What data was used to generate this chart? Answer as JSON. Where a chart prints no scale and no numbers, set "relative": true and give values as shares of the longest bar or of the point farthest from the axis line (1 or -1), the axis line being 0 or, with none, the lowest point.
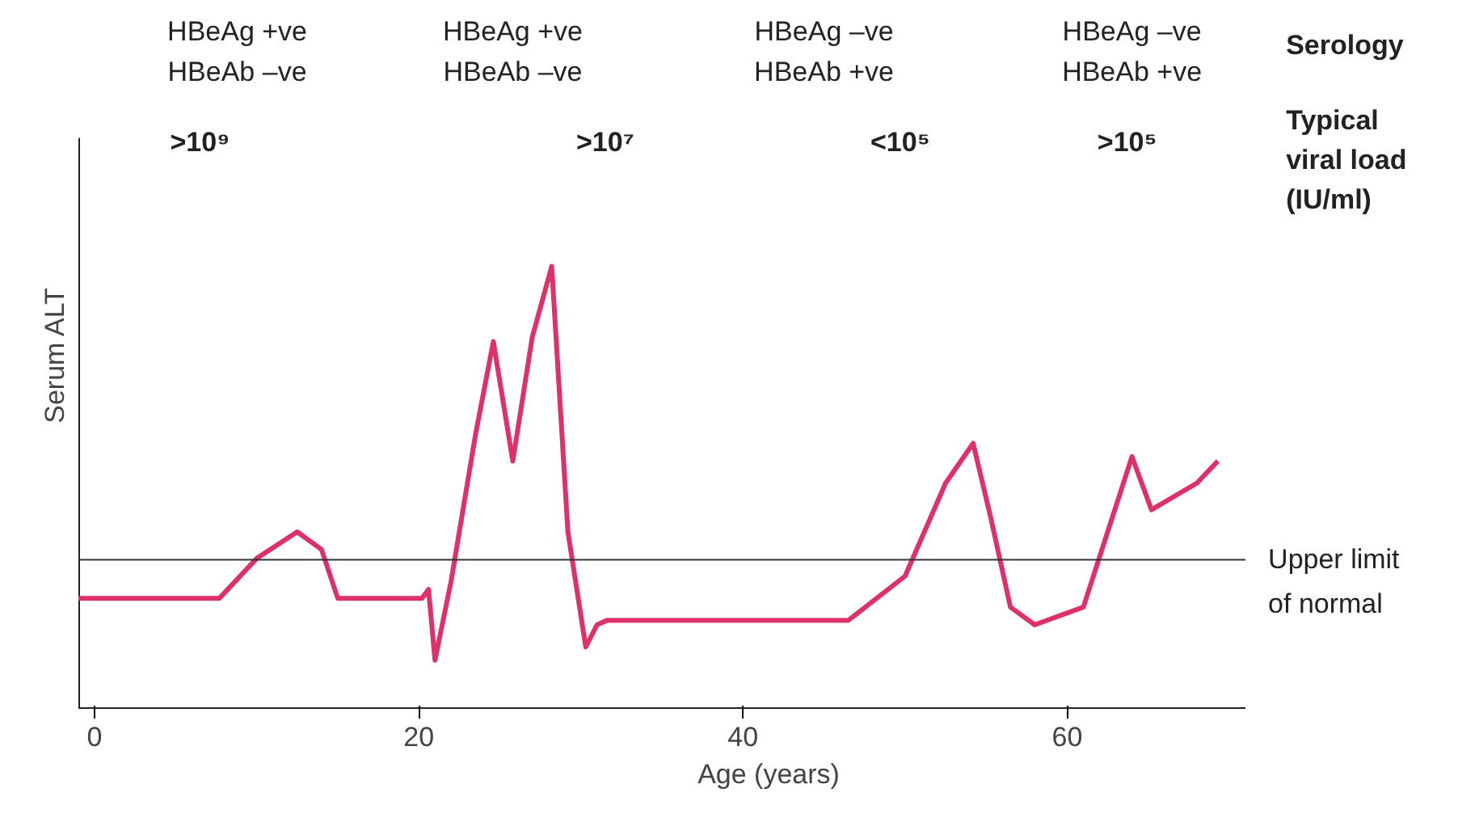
{
  "chart_data": {
    "type": "line",
    "relative": true,
    "xlabel": "Age (years)",
    "ylabel": "Serum ALT",
    "xlim": [
      -1,
      71
    ],
    "xticks": [
      0,
      20,
      40,
      60
    ],
    "tick_labels": "x",
    "grid": false,
    "line_style": "solid",
    "series": [
      {
        "color": "#e0306a",
        "x": [
          -1,
          7.7,
          10,
          12.5,
          14,
          15,
          20.2,
          20.6,
          21,
          22,
          23.5,
          24.6,
          25.8,
          27,
          28.2,
          29.2,
          30.3,
          31,
          31.6,
          46.5,
          50,
          52.5,
          54.2,
          55.3,
          56.5,
          58,
          61,
          62.5,
          64,
          65.2,
          68,
          69.3
        ],
        "values": [
          0.25,
          0.25,
          0.34,
          0.4,
          0.36,
          0.25,
          0.25,
          0.27,
          0.11,
          0.29,
          0.62,
          0.83,
          0.56,
          0.84,
          1.0,
          0.4,
          0.14,
          0.19,
          0.2,
          0.2,
          0.3,
          0.51,
          0.6,
          0.43,
          0.23,
          0.19,
          0.23,
          0.4,
          0.57,
          0.45,
          0.51,
          0.56
        ]
      }
    ],
    "ref_lines": [
      {
        "axis": "y",
        "value": 0.337,
        "label": "Upper limit\nof normal",
        "color": "#333333"
      }
    ],
    "annotations": [
      "HBeAg +ve\nHBeAb –ve",
      "HBeAg +ve\nHBeAb –ve",
      "HBeAg –ve\nHBeAb +ve",
      "HBeAg –ve\nHBeAb +ve",
      ">10⁹",
      ">10⁷",
      "<10⁵",
      ">10⁵",
      "Serology",
      "Typical\nviral load\n(IU/ml)"
    ]
  }
}
